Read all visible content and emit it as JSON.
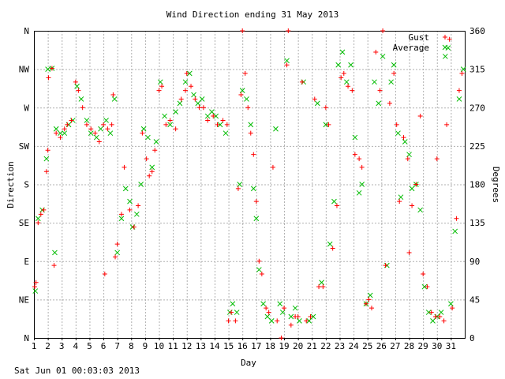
{
  "chart_data": {
    "type": "scatter",
    "title": "Wind Direction ending 31 May 2013",
    "xlabel": "Day",
    "ylabel_left": "Direction",
    "ylabel_right": "Degrees",
    "xlim": [
      1,
      32
    ],
    "ylim": [
      0,
      360
    ],
    "grid": true,
    "legend_position": "top-right",
    "x_ticks": [
      "1",
      "2",
      "3",
      "4",
      "5",
      "6",
      "7",
      "8",
      "9",
      "10",
      "11",
      "12",
      "13",
      "14",
      "15",
      "16",
      "17",
      "18",
      "19",
      "20",
      "21",
      "22",
      "23",
      "24",
      "25",
      "26",
      "27",
      "28",
      "29",
      "30",
      "31"
    ],
    "left_ticks": [
      {
        "value": 0,
        "label": "N"
      },
      {
        "value": 45,
        "label": "NE"
      },
      {
        "value": 90,
        "label": "E"
      },
      {
        "value": 135,
        "label": "SE"
      },
      {
        "value": 180,
        "label": "S"
      },
      {
        "value": 225,
        "label": "SW"
      },
      {
        "value": 270,
        "label": "W"
      },
      {
        "value": 315,
        "label": "NW"
      },
      {
        "value": 360,
        "label": "N"
      }
    ],
    "right_ticks": [
      0,
      45,
      90,
      135,
      180,
      225,
      270,
      315,
      360
    ],
    "series": [
      {
        "name": "Gust",
        "marker": "+",
        "color": "#ff0000",
        "points": [
          [
            1.05,
            60
          ],
          [
            1.15,
            65
          ],
          [
            1.3,
            135
          ],
          [
            1.5,
            145
          ],
          [
            1.7,
            150
          ],
          [
            1.9,
            195
          ],
          [
            2.0,
            220
          ],
          [
            2.05,
            305
          ],
          [
            2.3,
            316
          ],
          [
            2.45,
            85
          ],
          [
            2.6,
            240
          ],
          [
            2.9,
            235
          ],
          [
            3.2,
            245
          ],
          [
            3.4,
            250
          ],
          [
            3.7,
            255
          ],
          [
            4.0,
            300
          ],
          [
            4.2,
            290
          ],
          [
            4.5,
            270
          ],
          [
            4.8,
            250
          ],
          [
            5.1,
            245
          ],
          [
            5.4,
            240
          ],
          [
            5.7,
            230
          ],
          [
            6.0,
            250
          ],
          [
            6.1,
            75
          ],
          [
            6.3,
            245
          ],
          [
            6.6,
            250
          ],
          [
            6.7,
            285
          ],
          [
            6.85,
            95
          ],
          [
            7.0,
            110
          ],
          [
            7.3,
            145
          ],
          [
            7.5,
            200
          ],
          [
            7.9,
            150
          ],
          [
            8.2,
            130
          ],
          [
            8.5,
            155
          ],
          [
            8.8,
            240
          ],
          [
            9.1,
            210
          ],
          [
            9.3,
            190
          ],
          [
            9.5,
            195
          ],
          [
            9.7,
            220
          ],
          [
            10.0,
            290
          ],
          [
            10.2,
            295
          ],
          [
            10.5,
            250
          ],
          [
            10.8,
            255
          ],
          [
            11.2,
            245
          ],
          [
            11.6,
            280
          ],
          [
            11.9,
            290
          ],
          [
            12.0,
            310
          ],
          [
            12.3,
            295
          ],
          [
            12.6,
            280
          ],
          [
            12.9,
            270
          ],
          [
            13.2,
            270
          ],
          [
            13.5,
            255
          ],
          [
            13.9,
            260
          ],
          [
            14.2,
            250
          ],
          [
            14.6,
            255
          ],
          [
            14.9,
            250
          ],
          [
            15.0,
            20
          ],
          [
            15.2,
            30
          ],
          [
            15.5,
            20
          ],
          [
            15.7,
            175
          ],
          [
            15.9,
            285
          ],
          [
            16.0,
            360
          ],
          [
            16.2,
            310
          ],
          [
            16.4,
            270
          ],
          [
            16.6,
            240
          ],
          [
            16.8,
            215
          ],
          [
            17.0,
            160
          ],
          [
            17.2,
            90
          ],
          [
            17.4,
            75
          ],
          [
            17.7,
            35
          ],
          [
            17.9,
            30
          ],
          [
            18.2,
            200
          ],
          [
            18.5,
            20
          ],
          [
            18.8,
            0
          ],
          [
            19.0,
            35
          ],
          [
            19.2,
            320
          ],
          [
            19.3,
            360
          ],
          [
            19.5,
            15
          ],
          [
            19.8,
            25
          ],
          [
            20.0,
            25
          ],
          [
            20.3,
            300
          ],
          [
            20.6,
            20
          ],
          [
            20.9,
            25
          ],
          [
            21.2,
            280
          ],
          [
            21.5,
            60
          ],
          [
            21.8,
            60
          ],
          [
            22.0,
            270
          ],
          [
            22.2,
            250
          ],
          [
            22.5,
            105
          ],
          [
            22.8,
            155
          ],
          [
            23.1,
            305
          ],
          [
            23.3,
            310
          ],
          [
            23.6,
            295
          ],
          [
            23.9,
            290
          ],
          [
            24.1,
            215
          ],
          [
            24.4,
            210
          ],
          [
            24.6,
            200
          ],
          [
            24.9,
            40
          ],
          [
            25.1,
            45
          ],
          [
            25.3,
            35
          ],
          [
            25.6,
            335
          ],
          [
            25.9,
            290
          ],
          [
            26.1,
            360
          ],
          [
            26.3,
            85
          ],
          [
            26.6,
            275
          ],
          [
            26.9,
            310
          ],
          [
            27.1,
            250
          ],
          [
            27.3,
            160
          ],
          [
            27.6,
            235
          ],
          [
            27.9,
            210
          ],
          [
            28.0,
            100
          ],
          [
            28.2,
            155
          ],
          [
            28.5,
            180
          ],
          [
            28.8,
            260
          ],
          [
            29.0,
            75
          ],
          [
            29.3,
            60
          ],
          [
            29.6,
            30
          ],
          [
            29.9,
            25
          ],
          [
            30.0,
            210
          ],
          [
            30.2,
            25
          ],
          [
            30.5,
            20
          ],
          [
            30.7,
            250
          ],
          [
            30.9,
            350
          ],
          [
            31.1,
            35
          ],
          [
            31.4,
            140
          ],
          [
            31.6,
            290
          ],
          [
            31.8,
            310
          ]
        ]
      },
      {
        "name": "Average",
        "marker": "x",
        "color": "#00bb00",
        "points": [
          [
            1.1,
            55
          ],
          [
            1.3,
            140
          ],
          [
            1.6,
            150
          ],
          [
            1.9,
            210
          ],
          [
            2.0,
            315
          ],
          [
            2.3,
            316
          ],
          [
            2.5,
            100
          ],
          [
            2.6,
            245
          ],
          [
            2.9,
            240
          ],
          [
            3.2,
            240
          ],
          [
            3.5,
            250
          ],
          [
            3.8,
            255
          ],
          [
            4.1,
            295
          ],
          [
            4.4,
            280
          ],
          [
            4.8,
            255
          ],
          [
            5.1,
            240
          ],
          [
            5.5,
            235
          ],
          [
            5.8,
            245
          ],
          [
            6.2,
            255
          ],
          [
            6.5,
            240
          ],
          [
            6.8,
            280
          ],
          [
            7.0,
            100
          ],
          [
            7.3,
            140
          ],
          [
            7.6,
            175
          ],
          [
            7.9,
            160
          ],
          [
            8.1,
            130
          ],
          [
            8.4,
            145
          ],
          [
            8.7,
            180
          ],
          [
            8.9,
            245
          ],
          [
            9.2,
            235
          ],
          [
            9.5,
            200
          ],
          [
            9.8,
            230
          ],
          [
            10.1,
            300
          ],
          [
            10.4,
            260
          ],
          [
            10.8,
            250
          ],
          [
            11.2,
            265
          ],
          [
            11.5,
            275
          ],
          [
            11.9,
            300
          ],
          [
            12.2,
            310
          ],
          [
            12.5,
            285
          ],
          [
            12.8,
            275
          ],
          [
            13.1,
            280
          ],
          [
            13.5,
            260
          ],
          [
            13.8,
            265
          ],
          [
            14.1,
            260
          ],
          [
            14.4,
            250
          ],
          [
            14.8,
            240
          ],
          [
            15.1,
            30
          ],
          [
            15.3,
            40
          ],
          [
            15.6,
            30
          ],
          [
            15.8,
            180
          ],
          [
            16.0,
            290
          ],
          [
            16.3,
            280
          ],
          [
            16.6,
            250
          ],
          [
            16.8,
            175
          ],
          [
            17.0,
            140
          ],
          [
            17.2,
            80
          ],
          [
            17.5,
            40
          ],
          [
            17.8,
            25
          ],
          [
            18.1,
            20
          ],
          [
            18.4,
            245
          ],
          [
            18.7,
            40
          ],
          [
            18.9,
            30
          ],
          [
            19.2,
            325
          ],
          [
            19.5,
            25
          ],
          [
            19.8,
            35
          ],
          [
            20.1,
            20
          ],
          [
            20.4,
            300
          ],
          [
            20.8,
            20
          ],
          [
            21.1,
            25
          ],
          [
            21.4,
            275
          ],
          [
            21.7,
            65
          ],
          [
            22.0,
            250
          ],
          [
            22.3,
            110
          ],
          [
            22.6,
            160
          ],
          [
            22.9,
            320
          ],
          [
            23.2,
            335
          ],
          [
            23.5,
            300
          ],
          [
            23.8,
            320
          ],
          [
            24.1,
            235
          ],
          [
            24.4,
            170
          ],
          [
            24.6,
            180
          ],
          [
            24.9,
            40
          ],
          [
            25.2,
            50
          ],
          [
            25.5,
            300
          ],
          [
            25.8,
            275
          ],
          [
            26.1,
            330
          ],
          [
            26.4,
            85
          ],
          [
            26.7,
            300
          ],
          [
            26.9,
            320
          ],
          [
            27.2,
            240
          ],
          [
            27.4,
            165
          ],
          [
            27.7,
            230
          ],
          [
            28.0,
            215
          ],
          [
            28.2,
            175
          ],
          [
            28.5,
            180
          ],
          [
            28.8,
            150
          ],
          [
            29.1,
            60
          ],
          [
            29.4,
            30
          ],
          [
            29.7,
            20
          ],
          [
            30.0,
            25
          ],
          [
            30.3,
            30
          ],
          [
            30.6,
            330
          ],
          [
            30.8,
            340
          ],
          [
            31.0,
            40
          ],
          [
            31.3,
            125
          ],
          [
            31.6,
            280
          ],
          [
            31.9,
            315
          ]
        ]
      }
    ]
  },
  "footer": "Sat Jun 01 00:03:03 2013"
}
